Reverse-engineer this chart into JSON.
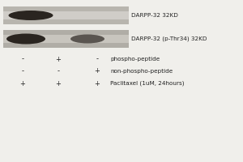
{
  "background_color": "#f0efeb",
  "blot_bg_top": "#b8b5ae",
  "blot_bg_bot": "#b0ada6",
  "blot_dark": "#2a2520",
  "blot_medium": "#5a5550",
  "blot_light_stripe_top": "#d0cdc8",
  "blot_light_stripe_bot": "#c8c5be",
  "band1_label": "DARPP-32 32KD",
  "band2_label": "DARPP-32 (p-Thr34) 32KD",
  "row_labels": [
    "phospho-peptide",
    "non-phospho-peptide",
    "Paclitaxel (1uM, 24hours)"
  ],
  "col_signs_row1": [
    "-",
    "+",
    "-"
  ],
  "col_signs_row2": [
    "-",
    "-",
    "+"
  ],
  "col_signs_row3": [
    "+",
    "+",
    "+"
  ],
  "label_fontsize": 5.2,
  "sign_fontsize": 6.0,
  "text_color": "#222222"
}
